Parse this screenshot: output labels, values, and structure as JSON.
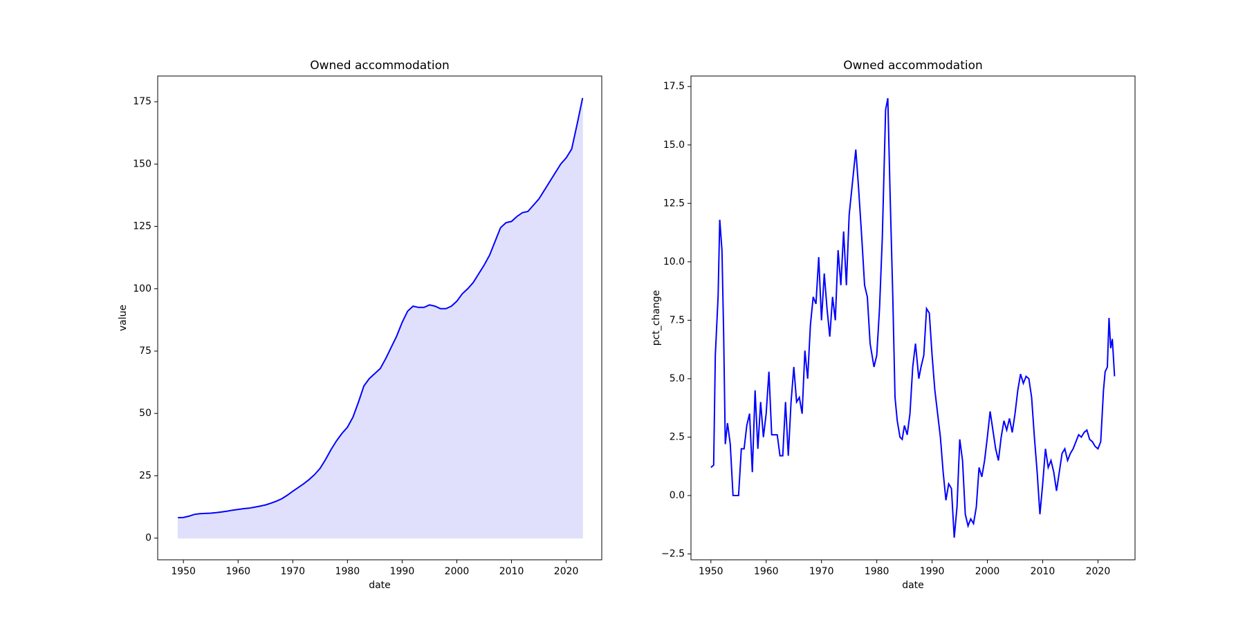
{
  "chart_data": [
    {
      "type": "area",
      "title": "Owned accommodation",
      "x_label": "date",
      "y_label": "value",
      "color": "#0000ff",
      "fill_color": "#e0e0fc",
      "x": [
        1949,
        1950,
        1951,
        1952,
        1953,
        1954,
        1955,
        1956,
        1957,
        1958,
        1959,
        1960,
        1961,
        1962,
        1963,
        1964,
        1965,
        1966,
        1967,
        1968,
        1969,
        1970,
        1971,
        1972,
        1973,
        1974,
        1975,
        1976,
        1977,
        1978,
        1979,
        1980,
        1981,
        1982,
        1983,
        1984,
        1985,
        1986,
        1987,
        1988,
        1989,
        1990,
        1991,
        1992,
        1993,
        1994,
        1995,
        1996,
        1997,
        1998,
        1999,
        2000,
        2001,
        2002,
        2003,
        2004,
        2005,
        2006,
        2007,
        2008,
        2009,
        2010,
        2011,
        2012,
        2013,
        2014,
        2015,
        2016,
        2017,
        2018,
        2019,
        2020,
        2021,
        2022,
        2023
      ],
      "values": [
        8.2,
        8.3,
        8.8,
        9.5,
        9.8,
        9.9,
        10,
        10.2,
        10.5,
        10.8,
        11.2,
        11.5,
        11.8,
        12,
        12.4,
        12.8,
        13.3,
        14,
        14.8,
        15.8,
        17.2,
        18.8,
        20.3,
        21.8,
        23.5,
        25.5,
        28,
        31.5,
        35.5,
        39,
        42,
        44.5,
        48.5,
        54.5,
        61,
        64,
        66,
        68,
        72,
        76.5,
        81,
        86.5,
        91,
        93,
        92.5,
        92.5,
        93.5,
        93,
        92,
        92,
        93,
        95,
        98,
        100,
        102.5,
        106,
        109.5,
        113.5,
        119,
        124.5,
        126.5,
        127,
        129,
        130.5,
        131,
        133.5,
        136,
        139.5,
        143,
        146.5,
        150,
        152.5,
        156,
        166,
        176.5
      ],
      "xlim": [
        1945.3,
        2026.5
      ],
      "ylim": [
        -8.7,
        185.3
      ],
      "xticks": [
        1950,
        1960,
        1970,
        1980,
        1990,
        2000,
        2010,
        2020
      ],
      "yticks": [
        0,
        25,
        50,
        75,
        100,
        125,
        150,
        175
      ]
    },
    {
      "type": "line",
      "title": "Owned accommodation",
      "x_label": "date",
      "y_label": "pct_change",
      "color": "#0000ff",
      "x": [
        1950,
        1950.5,
        1950.8,
        1951.3,
        1951.6,
        1952,
        1952.3,
        1952.6,
        1953,
        1953.5,
        1954,
        1955,
        1955.5,
        1956,
        1956.5,
        1957,
        1957.5,
        1958,
        1958.5,
        1959,
        1959.5,
        1960,
        1960.5,
        1961,
        1962,
        1962.5,
        1963,
        1963.5,
        1964,
        1964.5,
        1965,
        1965.5,
        1966,
        1966.5,
        1967,
        1967.5,
        1968,
        1968.5,
        1969,
        1969.5,
        1970,
        1970.5,
        1971,
        1971.5,
        1972,
        1972.5,
        1973,
        1973.5,
        1974,
        1974.5,
        1975,
        1976.2,
        1976.7,
        1977.3,
        1977.8,
        1978.3,
        1978.8,
        1979.5,
        1980,
        1980.5,
        1981,
        1981.6,
        1982,
        1982.4,
        1982.9,
        1983.3,
        1983.7,
        1984.2,
        1984.6,
        1985,
        1985.5,
        1986,
        1986.5,
        1987,
        1987.6,
        1988,
        1988.5,
        1989,
        1989.5,
        1990,
        1990.5,
        1991,
        1991.5,
        1992,
        1992.5,
        1993,
        1993.5,
        1994,
        1994.5,
        1995,
        1995.5,
        1996,
        1996.5,
        1997,
        1997.5,
        1998,
        1998.5,
        1999,
        1999.5,
        2000,
        2000.5,
        2001,
        2001.5,
        2002,
        2002.5,
        2003,
        2003.5,
        2004,
        2004.5,
        2005,
        2005.5,
        2006,
        2006.5,
        2007,
        2007.5,
        2008,
        2008.5,
        2009,
        2009.5,
        2010,
        2010.5,
        2011,
        2011.5,
        2012,
        2012.5,
        2013,
        2013.5,
        2014,
        2014.5,
        2015,
        2015.5,
        2016,
        2016.5,
        2017,
        2017.5,
        2018,
        2018.5,
        2019,
        2019.5,
        2020,
        2020.5,
        2021,
        2021.3,
        2021.7,
        2022,
        2022.3,
        2022.6,
        2023
      ],
      "values": [
        1.2,
        1.3,
        6,
        8.5,
        11.8,
        10.5,
        7,
        2.2,
        3.1,
        2.2,
        0,
        0,
        2,
        2,
        3,
        3.5,
        1,
        4.5,
        2,
        4,
        2.5,
        3.5,
        5.3,
        2.6,
        2.6,
        1.7,
        1.7,
        4,
        1.7,
        4,
        5.5,
        4,
        4.2,
        3.5,
        6.2,
        5,
        7.3,
        8.5,
        8.2,
        10.2,
        7.5,
        9.5,
        8,
        6.8,
        8.5,
        7.5,
        10.5,
        9,
        11.3,
        9,
        12,
        14.8,
        13.2,
        11,
        9,
        8.5,
        6.5,
        5.5,
        6,
        8,
        11,
        16.5,
        17,
        13,
        8.5,
        4.2,
        3.2,
        2.5,
        2.4,
        3,
        2.6,
        3.5,
        5.5,
        6.5,
        5,
        5.5,
        6,
        8,
        7.8,
        6,
        4.5,
        3.5,
        2.5,
        1,
        -0.2,
        0.5,
        0.3,
        -1.8,
        -0.5,
        2.4,
        1.5,
        -0.8,
        -1.3,
        -1,
        -1.2,
        -0.5,
        1.2,
        0.8,
        1.5,
        2.5,
        3.6,
        2.8,
        2,
        1.5,
        2.5,
        3.2,
        2.8,
        3.3,
        2.7,
        3.5,
        4.5,
        5.2,
        4.8,
        5.1,
        5,
        4.2,
        2.5,
        1,
        -0.8,
        0.5,
        2,
        1.2,
        1.5,
        1,
        0.2,
        1,
        1.8,
        2,
        1.5,
        1.8,
        2,
        2.3,
        2.6,
        2.5,
        2.7,
        2.8,
        2.4,
        2.3,
        2.1,
        2,
        2.3,
        4.5,
        5.3,
        5.5,
        7.6,
        6.3,
        6.7,
        5.1
      ],
      "xlim": [
        1946.4,
        2026.7
      ],
      "ylim": [
        -2.75,
        17.95
      ],
      "xticks": [
        1950,
        1960,
        1970,
        1980,
        1990,
        2000,
        2010,
        2020
      ],
      "yticks": [
        {
          "value": -2.5,
          "label": "−2.5"
        },
        {
          "value": 0,
          "label": "0.0"
        },
        2.5,
        {
          "value": 5,
          "label": "5.0"
        },
        7.5,
        {
          "value": 10,
          "label": "10.0"
        },
        12.5,
        {
          "value": 15,
          "label": "15.0"
        },
        17.5
      ]
    }
  ]
}
